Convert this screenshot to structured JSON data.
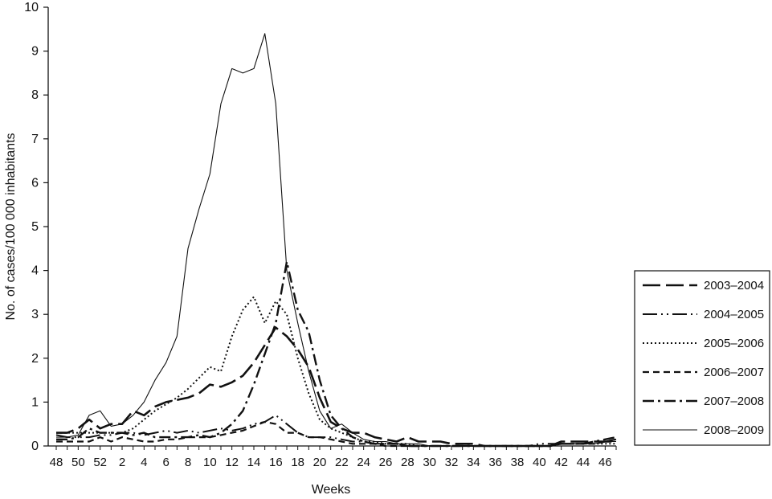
{
  "chart_data": {
    "type": "line",
    "xlabel": "Weeks",
    "ylabel": "No. of cases/100 000 inhabitants",
    "ylim": [
      0,
      10
    ],
    "yticks": [
      0,
      1,
      2,
      3,
      4,
      5,
      6,
      7,
      8,
      9,
      10
    ],
    "x": [
      48,
      49,
      50,
      51,
      52,
      1,
      2,
      3,
      4,
      5,
      6,
      7,
      8,
      9,
      10,
      11,
      12,
      13,
      14,
      15,
      16,
      17,
      18,
      19,
      20,
      21,
      22,
      23,
      24,
      25,
      26,
      27,
      28,
      29,
      30,
      31,
      32,
      33,
      34,
      35,
      36,
      37,
      38,
      39,
      40,
      41,
      42,
      43,
      44,
      45,
      46,
      47
    ],
    "xtick_labels": [
      "48",
      "50",
      "52",
      "2",
      "4",
      "6",
      "8",
      "10",
      "12",
      "14",
      "16",
      "18",
      "20",
      "22",
      "24",
      "26",
      "28",
      "30",
      "32",
      "34",
      "36",
      "38",
      "40",
      "42",
      "44",
      "46"
    ],
    "legend_position": "right",
    "grid": false,
    "series": [
      {
        "name": "2003–2004",
        "color": "#111111",
        "values": [
          0.3,
          0.3,
          0.4,
          0.6,
          0.4,
          0.5,
          0.5,
          0.8,
          0.7,
          0.9,
          1.0,
          1.05,
          1.1,
          1.2,
          1.4,
          1.35,
          1.45,
          1.6,
          1.9,
          2.3,
          2.7,
          2.5,
          2.2,
          1.8,
          1.1,
          0.55,
          0.4,
          0.3,
          0.3,
          0.2,
          0.15,
          0.1,
          0.2,
          0.1,
          0.1,
          0.1,
          0.05,
          0.05,
          0.05,
          0.0,
          0.0,
          0.0,
          0.0,
          0.0,
          0.0,
          0.0,
          0.1,
          0.1,
          0.1,
          0.1,
          0.1,
          0.1
        ]
      },
      {
        "name": "2004–2005",
        "color": "#111111",
        "values": [
          0.25,
          0.2,
          0.2,
          0.2,
          0.25,
          0.25,
          0.3,
          0.3,
          0.25,
          0.3,
          0.35,
          0.3,
          0.35,
          0.3,
          0.35,
          0.4,
          0.35,
          0.4,
          0.5,
          0.55,
          0.7,
          0.5,
          0.3,
          0.2,
          0.2,
          0.2,
          0.15,
          0.1,
          0.1,
          0.05,
          0.05,
          0.05,
          0.0,
          0.0,
          0.0,
          0.0,
          0.0,
          0.0,
          0.0,
          0.0,
          0.0,
          0.0,
          0.0,
          0.0,
          0.05,
          0.05,
          0.05,
          0.05,
          0.05,
          0.1,
          0.1,
          0.15
        ]
      },
      {
        "name": "2005–2006",
        "color": "#111111",
        "values": [
          0.3,
          0.3,
          0.3,
          0.3,
          0.3,
          0.3,
          0.3,
          0.4,
          0.6,
          0.8,
          0.95,
          1.1,
          1.3,
          1.55,
          1.8,
          1.7,
          2.5,
          3.1,
          3.4,
          2.8,
          3.3,
          3.0,
          2.0,
          1.2,
          0.6,
          0.4,
          0.3,
          0.2,
          0.1,
          0.1,
          0.05,
          0.05,
          0.05,
          0.0,
          0.0,
          0.0,
          0.0,
          0.0,
          0.0,
          0.0,
          0.0,
          0.0,
          0.0,
          0.0,
          0.0,
          0.0,
          0.05,
          0.05,
          0.05,
          0.05,
          0.05,
          0.05
        ]
      },
      {
        "name": "2006–2007",
        "color": "#111111",
        "values": [
          0.1,
          0.1,
          0.1,
          0.1,
          0.2,
          0.1,
          0.2,
          0.15,
          0.1,
          0.1,
          0.15,
          0.15,
          0.2,
          0.2,
          0.2,
          0.25,
          0.3,
          0.35,
          0.45,
          0.55,
          0.5,
          0.3,
          0.3,
          0.2,
          0.2,
          0.15,
          0.1,
          0.05,
          0.05,
          0.05,
          0.0,
          0.0,
          0.0,
          0.0,
          0.0,
          0.0,
          0.0,
          0.0,
          0.0,
          0.0,
          0.0,
          0.0,
          0.0,
          0.0,
          0.0,
          0.0,
          0.05,
          0.05,
          0.05,
          0.05,
          0.1,
          0.15
        ]
      },
      {
        "name": "2007–2008",
        "color": "#111111",
        "values": [
          0.15,
          0.15,
          0.2,
          0.4,
          0.3,
          0.3,
          0.3,
          0.25,
          0.3,
          0.2,
          0.2,
          0.2,
          0.2,
          0.25,
          0.2,
          0.3,
          0.5,
          0.8,
          1.4,
          2.1,
          2.8,
          4.2,
          3.1,
          2.6,
          1.5,
          0.7,
          0.4,
          0.2,
          0.1,
          0.05,
          0.05,
          0.05,
          0.0,
          0.0,
          0.0,
          0.0,
          0.0,
          0.0,
          0.0,
          0.0,
          0.0,
          0.0,
          0.0,
          0.0,
          0.0,
          0.0,
          0.05,
          0.05,
          0.05,
          0.1,
          0.15,
          0.2
        ]
      },
      {
        "name": "2008–2009",
        "color": "#111111",
        "values": [
          0.2,
          0.2,
          0.25,
          0.7,
          0.8,
          0.45,
          0.5,
          0.7,
          1.0,
          1.5,
          1.9,
          2.5,
          4.5,
          5.4,
          6.2,
          7.8,
          8.6,
          8.5,
          8.6,
          9.4,
          7.8,
          4.0,
          2.8,
          1.7,
          0.8,
          0.4,
          0.5,
          0.3,
          0.15,
          0.1,
          0.1,
          0.05,
          0.05,
          0.05,
          0.0,
          0.0,
          0.0,
          0.0,
          0.0,
          0.0,
          0.0,
          0.0,
          0.0,
          0.0,
          0.0,
          0.0,
          0.05,
          0.05,
          0.05,
          0.05,
          0.1,
          0.1
        ]
      }
    ]
  }
}
